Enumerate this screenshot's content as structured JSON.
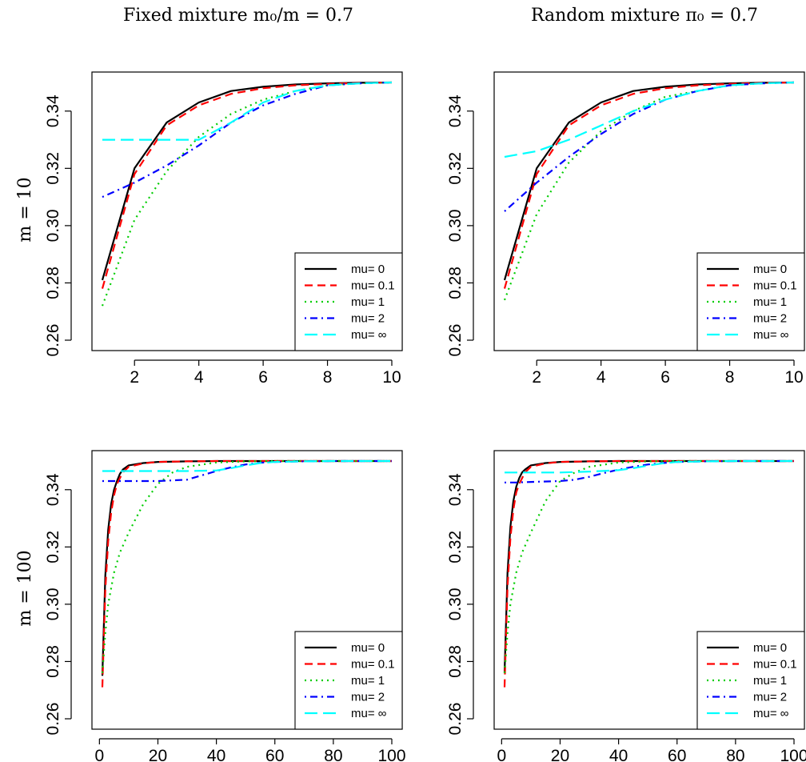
{
  "column_titles": [
    "Fixed mixture m₀/m = 0.7",
    "Random mixture π₀ = 0.7"
  ],
  "row_titles": [
    "m = 10",
    "m = 100"
  ],
  "colors": {
    "mu_0": "#000000",
    "mu_0.1": "#ff0000",
    "mu_1": "#00cd00",
    "mu_2": "#0000ff",
    "mu_inf": "#00ffff"
  },
  "chart_data": [
    {
      "type": "line",
      "panel": "fixed-m10",
      "xticks": [
        2,
        4,
        6,
        8,
        10
      ],
      "yticks": [
        "0.26",
        "0.28",
        "0.30",
        "0.32",
        "0.34"
      ],
      "xlim": [
        1,
        10
      ],
      "ylim": [
        0.26,
        0.35
      ],
      "legend_position": "bottom-right",
      "series": [
        {
          "name": "mu= 0",
          "color": "#000000",
          "dash": "solid",
          "x": [
            1,
            2,
            3,
            4,
            5,
            6,
            7,
            8,
            9,
            10
          ],
          "y": [
            0.281,
            0.32,
            0.336,
            0.343,
            0.347,
            0.3485,
            0.3493,
            0.3497,
            0.3499,
            0.35
          ]
        },
        {
          "name": "mu= 0.1",
          "color": "#ff0000",
          "dash": "dashed",
          "x": [
            1,
            2,
            3,
            4,
            5,
            6,
            7,
            8,
            9,
            10
          ],
          "y": [
            0.278,
            0.318,
            0.335,
            0.342,
            0.346,
            0.348,
            0.349,
            0.3495,
            0.3498,
            0.35
          ]
        },
        {
          "name": "mu= 1",
          "color": "#00cd00",
          "dash": "dotted",
          "x": [
            1,
            2,
            3,
            4,
            5,
            6,
            7,
            8,
            9,
            10
          ],
          "y": [
            0.272,
            0.302,
            0.319,
            0.331,
            0.339,
            0.344,
            0.347,
            0.349,
            0.3497,
            0.35
          ]
        },
        {
          "name": "mu= 2",
          "color": "#0000ff",
          "dash": "dotdash",
          "x": [
            1,
            2,
            3,
            4,
            5,
            6,
            7,
            8,
            9,
            10
          ],
          "y": [
            0.31,
            0.315,
            0.321,
            0.328,
            0.336,
            0.342,
            0.346,
            0.349,
            0.3497,
            0.35
          ]
        },
        {
          "name": "mu= ∞",
          "color": "#00ffff",
          "dash": "longdash",
          "x": [
            1,
            2,
            3,
            4,
            5,
            6,
            7,
            8,
            9,
            10
          ],
          "y": [
            0.33,
            0.33,
            0.33,
            0.33,
            0.336,
            0.343,
            0.347,
            0.349,
            0.3497,
            0.35
          ]
        }
      ]
    },
    {
      "type": "line",
      "panel": "random-m10",
      "xticks": [
        2,
        4,
        6,
        8,
        10
      ],
      "yticks": [
        "0.26",
        "0.28",
        "0.30",
        "0.32",
        "0.34"
      ],
      "xlim": [
        1,
        10
      ],
      "ylim": [
        0.26,
        0.35
      ],
      "legend_position": "bottom-right",
      "series": [
        {
          "name": "mu= 0",
          "color": "#000000",
          "dash": "solid",
          "x": [
            1,
            2,
            3,
            4,
            5,
            6,
            7,
            8,
            9,
            10
          ],
          "y": [
            0.281,
            0.32,
            0.336,
            0.343,
            0.347,
            0.3485,
            0.3493,
            0.3497,
            0.3499,
            0.35
          ]
        },
        {
          "name": "mu= 0.1",
          "color": "#ff0000",
          "dash": "dashed",
          "x": [
            1,
            2,
            3,
            4,
            5,
            6,
            7,
            8,
            9,
            10
          ],
          "y": [
            0.278,
            0.318,
            0.335,
            0.342,
            0.346,
            0.348,
            0.349,
            0.3495,
            0.3498,
            0.35
          ]
        },
        {
          "name": "mu= 1",
          "color": "#00cd00",
          "dash": "dotted",
          "x": [
            1,
            2,
            3,
            4,
            5,
            6,
            7,
            8,
            9,
            10
          ],
          "y": [
            0.274,
            0.304,
            0.322,
            0.333,
            0.34,
            0.345,
            0.347,
            0.349,
            0.3497,
            0.35
          ]
        },
        {
          "name": "mu= 2",
          "color": "#0000ff",
          "dash": "dotdash",
          "x": [
            1,
            2,
            3,
            4,
            5,
            6,
            7,
            8,
            9,
            10
          ],
          "y": [
            0.305,
            0.315,
            0.324,
            0.332,
            0.339,
            0.344,
            0.347,
            0.349,
            0.3497,
            0.35
          ]
        },
        {
          "name": "mu= ∞",
          "color": "#00ffff",
          "dash": "longdash",
          "x": [
            1,
            2,
            3,
            4,
            5,
            6,
            7,
            8,
            9,
            10
          ],
          "y": [
            0.324,
            0.326,
            0.33,
            0.335,
            0.34,
            0.344,
            0.347,
            0.349,
            0.3497,
            0.35
          ]
        }
      ]
    },
    {
      "type": "line",
      "panel": "fixed-m100",
      "xticks": [
        0,
        20,
        40,
        60,
        80,
        100
      ],
      "yticks": [
        "0.26",
        "0.28",
        "0.30",
        "0.32",
        "0.34"
      ],
      "xlim": [
        1,
        100
      ],
      "ylim": [
        0.26,
        0.35
      ],
      "legend_position": "bottom-right",
      "series": [
        {
          "name": "mu= 0",
          "color": "#000000",
          "dash": "solid",
          "x": [
            1,
            2,
            3,
            4,
            5,
            6,
            7,
            8,
            10,
            15,
            20,
            30,
            40,
            50,
            60,
            80,
            100
          ],
          "y": [
            0.275,
            0.31,
            0.326,
            0.335,
            0.34,
            0.343,
            0.3455,
            0.347,
            0.3485,
            0.3493,
            0.3497,
            0.3499,
            0.35,
            0.35,
            0.35,
            0.35,
            0.35
          ]
        },
        {
          "name": "mu= 0.1",
          "color": "#ff0000",
          "dash": "dashed",
          "x": [
            1,
            2,
            3,
            4,
            5,
            6,
            7,
            8,
            10,
            15,
            20,
            30,
            40,
            50,
            60,
            80,
            100
          ],
          "y": [
            0.271,
            0.305,
            0.322,
            0.332,
            0.338,
            0.342,
            0.344,
            0.346,
            0.348,
            0.3492,
            0.3497,
            0.3499,
            0.35,
            0.35,
            0.35,
            0.35,
            0.35
          ]
        },
        {
          "name": "mu= 1",
          "color": "#00cd00",
          "dash": "dotted",
          "x": [
            1,
            2,
            3,
            5,
            7,
            10,
            15,
            20,
            25,
            30,
            40,
            50,
            60,
            80,
            100
          ],
          "y": [
            0.276,
            0.29,
            0.3,
            0.311,
            0.318,
            0.325,
            0.335,
            0.342,
            0.346,
            0.348,
            0.3495,
            0.3499,
            0.35,
            0.35,
            0.35
          ]
        },
        {
          "name": "mu= 2",
          "color": "#0000ff",
          "dash": "dotdash",
          "x": [
            1,
            5,
            10,
            20,
            30,
            35,
            40,
            45,
            50,
            55,
            60,
            70,
            80,
            100
          ],
          "y": [
            0.343,
            0.343,
            0.343,
            0.343,
            0.3435,
            0.345,
            0.3465,
            0.3478,
            0.3488,
            0.3494,
            0.3497,
            0.3499,
            0.35,
            0.35
          ]
        },
        {
          "name": "mu= ∞",
          "color": "#00ffff",
          "dash": "longdash",
          "x": [
            1,
            10,
            20,
            30,
            40,
            45,
            50,
            55,
            60,
            70,
            80,
            100
          ],
          "y": [
            0.3465,
            0.3465,
            0.3465,
            0.3465,
            0.3467,
            0.3475,
            0.3485,
            0.3493,
            0.3497,
            0.3499,
            0.35,
            0.35
          ]
        }
      ]
    },
    {
      "type": "line",
      "panel": "random-m100",
      "xticks": [
        0,
        20,
        40,
        60,
        80,
        100
      ],
      "yticks": [
        "0.26",
        "0.28",
        "0.30",
        "0.32",
        "0.34"
      ],
      "xlim": [
        1,
        100
      ],
      "ylim": [
        0.26,
        0.35
      ],
      "legend_position": "bottom-right",
      "series": [
        {
          "name": "mu= 0",
          "color": "#000000",
          "dash": "solid",
          "x": [
            1,
            2,
            3,
            4,
            5,
            6,
            7,
            8,
            10,
            15,
            20,
            30,
            40,
            50,
            60,
            80,
            100
          ],
          "y": [
            0.276,
            0.311,
            0.327,
            0.336,
            0.341,
            0.344,
            0.346,
            0.347,
            0.3485,
            0.3493,
            0.3497,
            0.3499,
            0.35,
            0.35,
            0.35,
            0.35,
            0.35
          ]
        },
        {
          "name": "mu= 0.1",
          "color": "#ff0000",
          "dash": "dashed",
          "x": [
            1,
            2,
            3,
            4,
            5,
            6,
            7,
            8,
            10,
            15,
            20,
            30,
            40,
            50,
            60,
            80,
            100
          ],
          "y": [
            0.271,
            0.306,
            0.323,
            0.333,
            0.339,
            0.342,
            0.344,
            0.346,
            0.348,
            0.3492,
            0.3497,
            0.3499,
            0.35,
            0.35,
            0.35,
            0.35,
            0.35
          ]
        },
        {
          "name": "mu= 1",
          "color": "#00cd00",
          "dash": "dotted",
          "x": [
            1,
            2,
            3,
            5,
            7,
            10,
            15,
            20,
            25,
            30,
            40,
            50,
            60,
            80,
            100
          ],
          "y": [
            0.276,
            0.29,
            0.3,
            0.311,
            0.318,
            0.325,
            0.336,
            0.343,
            0.346,
            0.348,
            0.3495,
            0.3499,
            0.35,
            0.35,
            0.35
          ]
        },
        {
          "name": "mu= 2",
          "color": "#0000ff",
          "dash": "dotdash",
          "x": [
            1,
            5,
            10,
            20,
            25,
            30,
            35,
            40,
            45,
            50,
            55,
            60,
            70,
            80,
            100
          ],
          "y": [
            0.3425,
            0.3425,
            0.3427,
            0.343,
            0.3435,
            0.3445,
            0.3458,
            0.347,
            0.348,
            0.3488,
            0.3493,
            0.3497,
            0.3499,
            0.35,
            0.35
          ]
        },
        {
          "name": "mu= ∞",
          "color": "#00ffff",
          "dash": "longdash",
          "x": [
            1,
            10,
            20,
            30,
            40,
            45,
            50,
            55,
            60,
            70,
            80,
            100
          ],
          "y": [
            0.346,
            0.346,
            0.346,
            0.3463,
            0.3468,
            0.3475,
            0.3484,
            0.3492,
            0.3497,
            0.3499,
            0.35,
            0.35
          ]
        }
      ]
    }
  ]
}
